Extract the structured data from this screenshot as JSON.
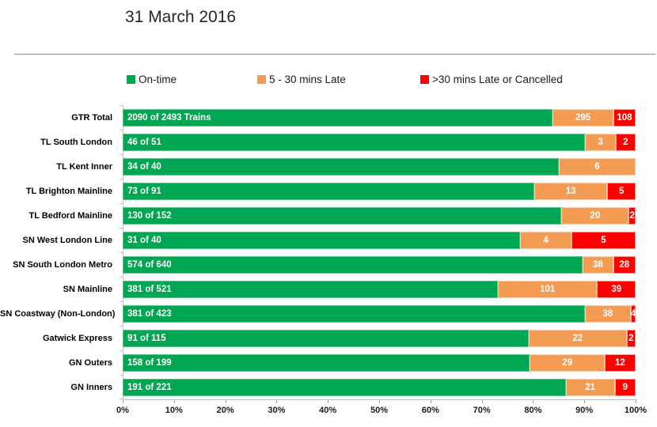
{
  "title": "31 March 2016",
  "legend": {
    "items": [
      {
        "label": "On-time",
        "color": "#00A651"
      },
      {
        "label": "5 - 30 mins Late",
        "color": "#F49C54"
      },
      {
        "label": ">30 mins Late or Cancelled",
        "color": "#FF0000"
      }
    ]
  },
  "colors": {
    "on_time": "#00A651",
    "late": "#F49C54",
    "cancelled": "#FF0000"
  },
  "chart_data": {
    "type": "bar",
    "orientation": "horizontal",
    "stacked": true,
    "normalized_to_percent": true,
    "title": "31 March 2016",
    "legend_position": "top",
    "xlim": [
      0,
      100
    ],
    "x_ticks": [
      "0%",
      "10%",
      "20%",
      "30%",
      "40%",
      "50%",
      "60%",
      "70%",
      "80%",
      "90%",
      "100%"
    ],
    "series_names": [
      "On-time",
      "5 - 30 mins Late",
      ">30 mins Late or Cancelled"
    ],
    "rows": [
      {
        "category": "GTR Total",
        "total": 2493,
        "on_time": 2090,
        "late": 295,
        "cancelled": 108,
        "on_time_label": "2090 of 2493 Trains",
        "late_label": "295",
        "cancelled_label": "108"
      },
      {
        "category": "TL South London",
        "total": 51,
        "on_time": 46,
        "late": 3,
        "cancelled": 2,
        "on_time_label": "46 of 51",
        "late_label": "3",
        "cancelled_label": "2"
      },
      {
        "category": "TL Kent Inner",
        "total": 40,
        "on_time": 34,
        "late": 6,
        "cancelled": 0,
        "on_time_label": "34 of 40",
        "late_label": "6",
        "cancelled_label": ""
      },
      {
        "category": "TL Brighton Mainline",
        "total": 91,
        "on_time": 73,
        "late": 13,
        "cancelled": 5,
        "on_time_label": "73 of 91",
        "late_label": "13",
        "cancelled_label": "5"
      },
      {
        "category": "TL Bedford Mainline",
        "total": 152,
        "on_time": 130,
        "late": 20,
        "cancelled": 2,
        "on_time_label": "130 of 152",
        "late_label": "20",
        "cancelled_label": "2"
      },
      {
        "category": "SN West London Line",
        "total": 40,
        "on_time": 31,
        "late": 4,
        "cancelled": 5,
        "on_time_label": "31 of 40",
        "late_label": "4",
        "cancelled_label": "5"
      },
      {
        "category": "SN South London Metro",
        "total": 640,
        "on_time": 574,
        "late": 38,
        "cancelled": 28,
        "on_time_label": "574 of 640",
        "late_label": "38",
        "cancelled_label": "28"
      },
      {
        "category": "SN Mainline",
        "total": 521,
        "on_time": 381,
        "late": 101,
        "cancelled": 39,
        "on_time_label": "381 of 521",
        "late_label": "101",
        "cancelled_label": "39"
      },
      {
        "category": "SN Coastway (Non-London)",
        "total": 423,
        "on_time": 381,
        "late": 38,
        "cancelled": 4,
        "on_time_label": "381 of 423",
        "late_label": "38",
        "cancelled_label": "4"
      },
      {
        "category": "Gatwick Express",
        "total": 115,
        "on_time": 91,
        "late": 22,
        "cancelled": 2,
        "on_time_label": "91 of 115",
        "late_label": "22",
        "cancelled_label": "2"
      },
      {
        "category": "GN Outers",
        "total": 199,
        "on_time": 158,
        "late": 29,
        "cancelled": 12,
        "on_time_label": "158 of 199",
        "late_label": "29",
        "cancelled_label": "12"
      },
      {
        "category": "GN Inners",
        "total": 221,
        "on_time": 191,
        "late": 21,
        "cancelled": 9,
        "on_time_label": "191 of 221",
        "late_label": "21",
        "cancelled_label": "9"
      }
    ]
  }
}
